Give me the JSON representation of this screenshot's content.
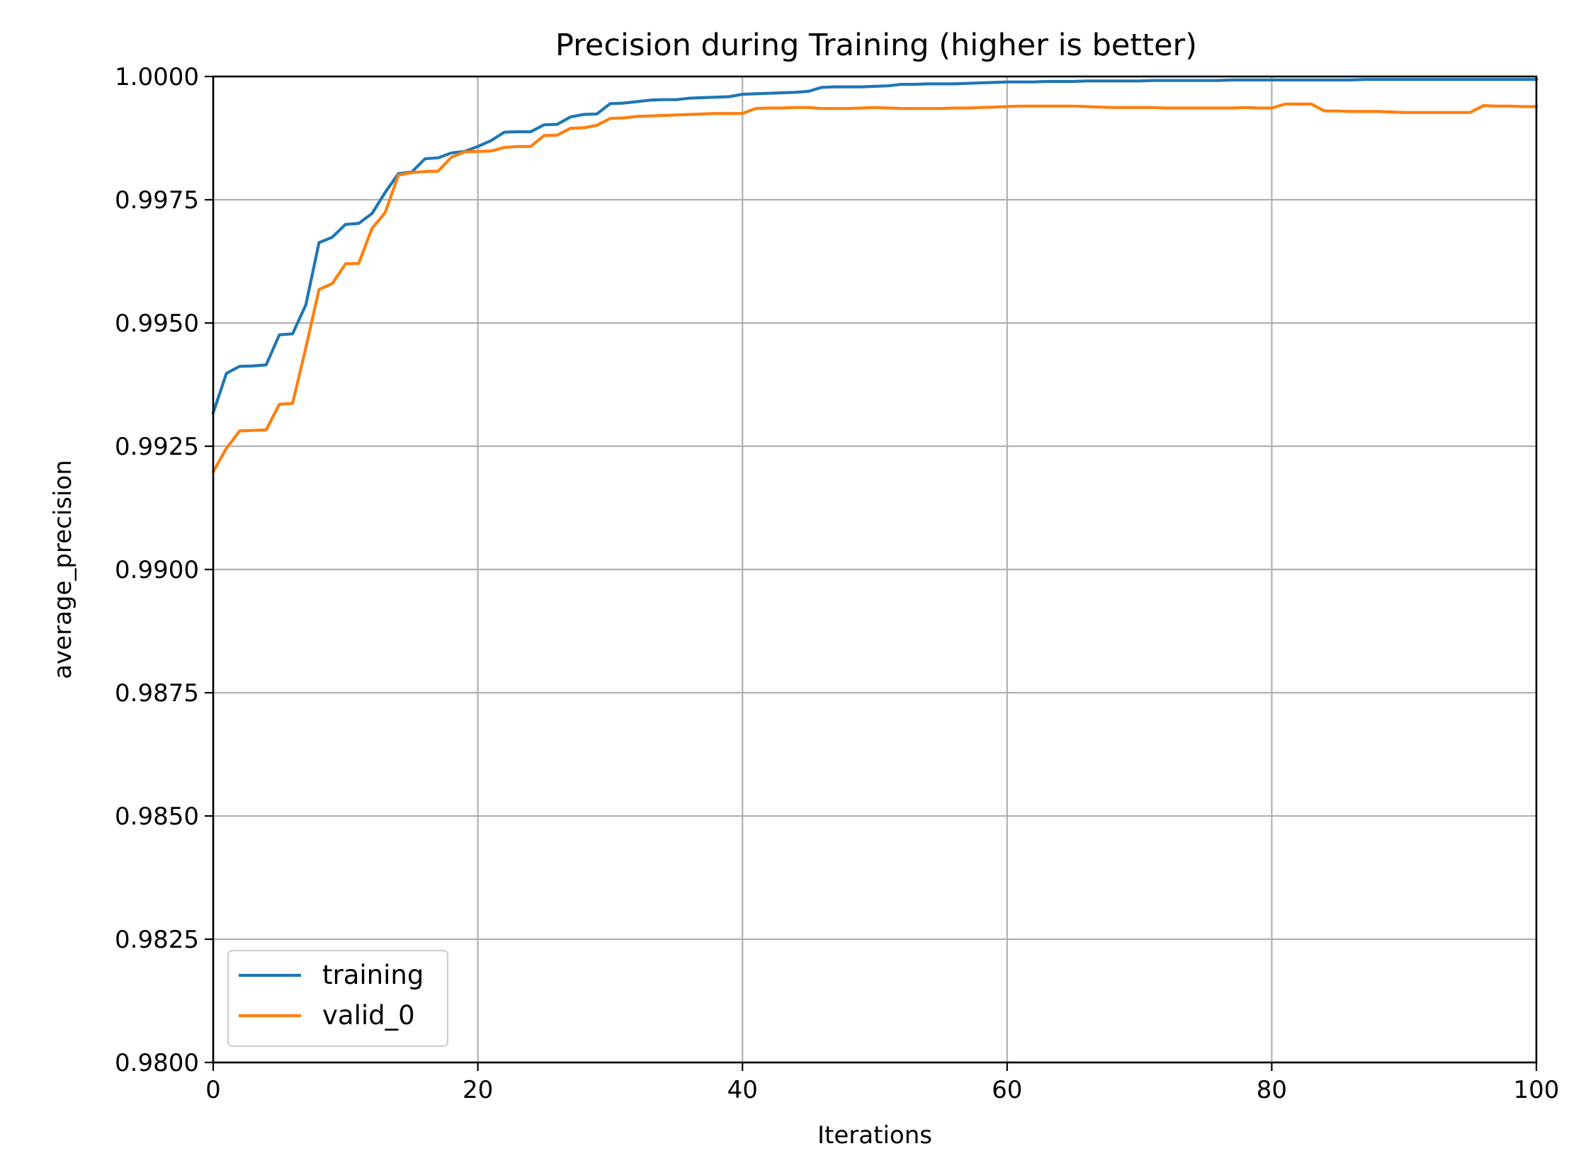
{
  "chart_data": {
    "type": "line",
    "title": "Precision during Training (higher is better)",
    "xlabel": "Iterations",
    "ylabel": "average_precision",
    "xlim": [
      0,
      100
    ],
    "ylim": [
      0.98,
      1.0
    ],
    "xticks": [
      0,
      20,
      40,
      60,
      80,
      100
    ],
    "xtick_labels": [
      "0",
      "20",
      "40",
      "60",
      "80",
      "100"
    ],
    "yticks": [
      0.98,
      0.9825,
      0.985,
      0.9875,
      0.99,
      0.9925,
      0.995,
      0.9975,
      1.0
    ],
    "ytick_labels": [
      "0.9800",
      "0.9825",
      "0.9850",
      "0.9875",
      "0.9900",
      "0.9925",
      "0.9950",
      "0.9975",
      "1.0000"
    ],
    "grid": true,
    "legend_position": "lower-left",
    "x": [
      0,
      1,
      2,
      3,
      4,
      5,
      6,
      7,
      8,
      9,
      10,
      11,
      12,
      13,
      14,
      15,
      16,
      17,
      18,
      19,
      20,
      21,
      22,
      23,
      24,
      25,
      26,
      27,
      28,
      29,
      30,
      31,
      32,
      33,
      34,
      35,
      36,
      37,
      38,
      39,
      40,
      41,
      42,
      43,
      44,
      45,
      46,
      47,
      48,
      49,
      50,
      51,
      52,
      53,
      54,
      55,
      56,
      57,
      58,
      59,
      60,
      61,
      62,
      63,
      64,
      65,
      66,
      67,
      68,
      69,
      70,
      71,
      72,
      73,
      74,
      75,
      76,
      77,
      78,
      79,
      80,
      81,
      82,
      83,
      84,
      85,
      86,
      87,
      88,
      89,
      90,
      91,
      92,
      93,
      94,
      95,
      96,
      97,
      98,
      99,
      100
    ],
    "series": [
      {
        "name": "training",
        "color": "#1f77b4",
        "values": [
          0.99318,
          0.99398,
          0.99412,
          0.99413,
          0.99415,
          0.99476,
          0.99478,
          0.99537,
          0.99663,
          0.99674,
          0.997,
          0.99702,
          0.99722,
          0.99765,
          0.99803,
          0.99806,
          0.99833,
          0.99835,
          0.99845,
          0.99848,
          0.99858,
          0.9987,
          0.99887,
          0.99888,
          0.99888,
          0.99902,
          0.99903,
          0.99918,
          0.99923,
          0.99924,
          0.99945,
          0.99946,
          0.99949,
          0.99952,
          0.99953,
          0.99953,
          0.99956,
          0.99957,
          0.99958,
          0.99959,
          0.99964,
          0.99965,
          0.99966,
          0.99967,
          0.99968,
          0.9997,
          0.99978,
          0.99979,
          0.99979,
          0.99979,
          0.9998,
          0.99981,
          0.99984,
          0.99984,
          0.99985,
          0.99985,
          0.99985,
          0.99986,
          0.99987,
          0.99988,
          0.99989,
          0.99989,
          0.99989,
          0.9999,
          0.9999,
          0.9999,
          0.99991,
          0.99991,
          0.99991,
          0.99991,
          0.99991,
          0.99992,
          0.99992,
          0.99992,
          0.99992,
          0.99992,
          0.99992,
          0.99993,
          0.99993,
          0.99993,
          0.99993,
          0.99993,
          0.99993,
          0.99993,
          0.99993,
          0.99993,
          0.99993,
          0.99994,
          0.99994,
          0.99994,
          0.99994,
          0.99994,
          0.99994,
          0.99994,
          0.99994,
          0.99994,
          0.99994,
          0.99994,
          0.99994,
          0.99994,
          0.99994
        ]
      },
      {
        "name": "valid_0",
        "color": "#ff7f0e",
        "values": [
          0.99198,
          0.99246,
          0.99281,
          0.99282,
          0.99283,
          0.99335,
          0.99337,
          0.9945,
          0.99568,
          0.9958,
          0.9962,
          0.99621,
          0.99692,
          0.99724,
          0.998,
          0.99805,
          0.99807,
          0.99808,
          0.99836,
          0.99847,
          0.99848,
          0.99849,
          0.99856,
          0.99858,
          0.99858,
          0.9988,
          0.99881,
          0.99895,
          0.99896,
          0.99901,
          0.99915,
          0.99916,
          0.99919,
          0.9992,
          0.99921,
          0.99922,
          0.99923,
          0.99924,
          0.99925,
          0.99925,
          0.99925,
          0.99935,
          0.99936,
          0.99936,
          0.99937,
          0.99937,
          0.99935,
          0.99935,
          0.99935,
          0.99936,
          0.99937,
          0.99936,
          0.99935,
          0.99935,
          0.99935,
          0.99935,
          0.99936,
          0.99936,
          0.99937,
          0.99938,
          0.99939,
          0.9994,
          0.9994,
          0.9994,
          0.9994,
          0.9994,
          0.99939,
          0.99938,
          0.99937,
          0.99937,
          0.99937,
          0.99937,
          0.99936,
          0.99936,
          0.99936,
          0.99936,
          0.99936,
          0.99936,
          0.99937,
          0.99936,
          0.99936,
          0.99944,
          0.99944,
          0.99944,
          0.9993,
          0.9993,
          0.99929,
          0.99929,
          0.99929,
          0.99928,
          0.99927,
          0.99927,
          0.99927,
          0.99927,
          0.99927,
          0.99927,
          0.99941,
          0.9994,
          0.9994,
          0.99939,
          0.99939
        ]
      }
    ]
  }
}
